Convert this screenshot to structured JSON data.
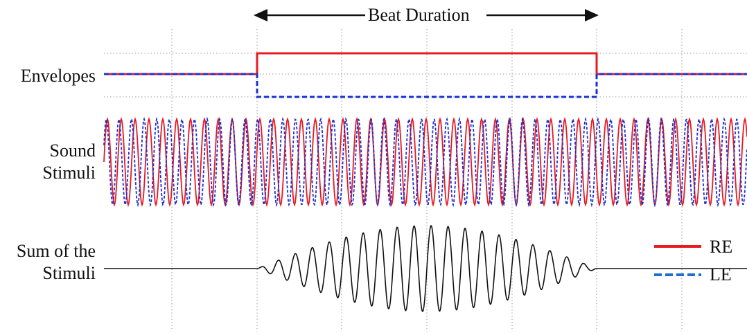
{
  "labels": {
    "beat_duration": "Beat Duration",
    "envelopes": "Envelopes",
    "sound_line1": "Sound",
    "sound_line2": "Stimuli",
    "sum_line1": "Sum of the",
    "sum_line2": "Stimuli"
  },
  "legend": [
    {
      "name": "RE",
      "color": "#e8191f",
      "style": "solid"
    },
    {
      "name": "LE",
      "color": "#1a2fd6",
      "style": "dashed"
    }
  ],
  "colors": {
    "re": "#e8191f",
    "le": "#1a2fd6",
    "sum": "#111111",
    "grid": "#9a9a9a",
    "legend_le": "#1f6fd0"
  }
}
